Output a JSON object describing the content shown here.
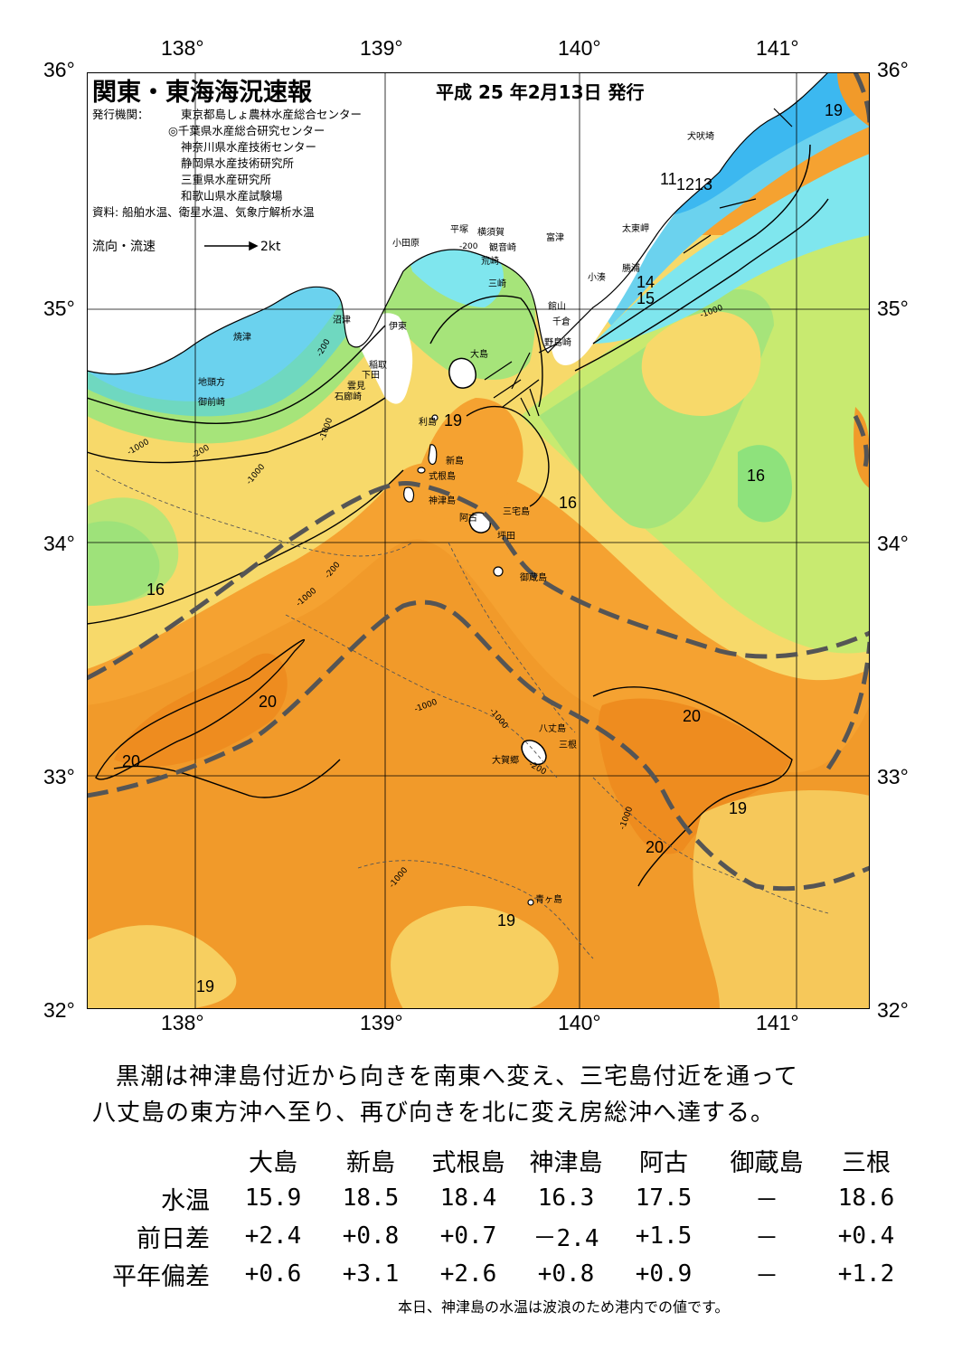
{
  "map": {
    "title": "関東・東海海況速報",
    "issue_date": "平成 25 年2月13日 発行",
    "publisher_label": "発行機関：",
    "publishers": [
      "東京都島しょ農林水産総合センター",
      "◎千葉県水産総合研究センター",
      "神奈川県水産技術センター",
      "静岡県水産技術研究所",
      "三重県水産研究所",
      "和歌山県水産試験場"
    ],
    "source": "資料: 船舶水温、衛星水温、気象庁解析水温",
    "current_legend": "流向・流速",
    "current_scale": "2kt",
    "lon_labels": [
      "138°",
      "139°",
      "140°",
      "141°"
    ],
    "lat_labels": [
      "36°",
      "35°",
      "34°",
      "33°",
      "32°"
    ],
    "places": [
      {
        "id": "inubozaki",
        "text": "犬吠埼"
      },
      {
        "id": "taitomisaki",
        "text": "太東岬"
      },
      {
        "id": "katsuura",
        "text": "勝浦"
      },
      {
        "id": "kominato",
        "text": "小湊"
      },
      {
        "id": "tomitsu",
        "text": "富津"
      },
      {
        "id": "yokosuka",
        "text": "横須賀"
      },
      {
        "id": "hiratsuka",
        "text": "平塚"
      },
      {
        "id": "kannonzaki",
        "text": "観音崎"
      },
      {
        "id": "arasaki",
        "text": "荒崎"
      },
      {
        "id": "odawara",
        "text": "小田原"
      },
      {
        "id": "misaki",
        "text": "三崎"
      },
      {
        "id": "tateyama",
        "text": "館山"
      },
      {
        "id": "chikura",
        "text": "千倉"
      },
      {
        "id": "nojimazaki",
        "text": "野島崎"
      },
      {
        "id": "numazu",
        "text": "沼津"
      },
      {
        "id": "ito",
        "text": "伊東"
      },
      {
        "id": "inatori",
        "text": "稲取"
      },
      {
        "id": "shimoda",
        "text": "下田"
      },
      {
        "id": "kumomi",
        "text": "雲見"
      },
      {
        "id": "irozaki",
        "text": "石廊崎"
      },
      {
        "id": "yaizu",
        "text": "焼津"
      },
      {
        "id": "jitogata",
        "text": "地頭方"
      },
      {
        "id": "omaezaki",
        "text": "御前崎"
      },
      {
        "id": "oshima",
        "text": "大島"
      },
      {
        "id": "toshima",
        "text": "利島"
      },
      {
        "id": "niijima",
        "text": "新島"
      },
      {
        "id": "shikinejima",
        "text": "式根島"
      },
      {
        "id": "kozushima",
        "text": "神津島"
      },
      {
        "id": "miyakejima",
        "text": "三宅島"
      },
      {
        "id": "ako",
        "text": "阿古"
      },
      {
        "id": "tsubota",
        "text": "坪田"
      },
      {
        "id": "mikurajima",
        "text": "御蔵島"
      },
      {
        "id": "hachijojima",
        "text": "八丈島"
      },
      {
        "id": "mitsune",
        "text": "三根"
      },
      {
        "id": "okago",
        "text": "大賀郷"
      },
      {
        "id": "aogashima",
        "text": "青ヶ島"
      }
    ],
    "isotherm_labels": [
      "11",
      "12",
      "13",
      "14",
      "15",
      "16",
      "16",
      "16",
      "19",
      "19",
      "19",
      "19",
      "19",
      "20",
      "20",
      "20",
      "20"
    ],
    "depth_labels": [
      "-200",
      "-200",
      "-200",
      "-200",
      "-200",
      "-1000",
      "-1000",
      "-1000",
      "-1000",
      "-1000",
      "-1000",
      "-1000",
      "-1000",
      "-1000"
    ],
    "colors": {
      "cold_blue": "#3cb8f0",
      "cyan": "#7fe6ee",
      "green": "#8ee27c",
      "lime": "#c8ea70",
      "yellow": "#f7dc6a",
      "orange": "#f5a231",
      "deep_orange": "#ef8b1e",
      "kuroshio_axis": "#555555"
    }
  },
  "description": {
    "line1": "黒潮は神津島付近から向きを南東へ変え、三宅島付近を通って",
    "line2": "八丈島の東方沖へ至り、再び向きを北に変え房総沖へ達する。"
  },
  "observations": {
    "stations": [
      "大島",
      "新島",
      "式根島",
      "神津島",
      "阿古",
      "御蔵島",
      "三根"
    ],
    "rows": [
      {
        "label": "水温",
        "values": [
          "15.9",
          "18.5",
          "18.4",
          "16.3",
          "17.5",
          "－",
          "18.6"
        ]
      },
      {
        "label": "前日差",
        "values": [
          "+2.4",
          "+0.8",
          "+0.7",
          "－2.4",
          "+1.5",
          "－",
          "+0.4"
        ]
      },
      {
        "label": "平年偏差",
        "values": [
          "+0.6",
          "+3.1",
          "+2.6",
          "+0.8",
          "+0.9",
          "－",
          "+1.2"
        ]
      }
    ],
    "note": "本日、神津島の水温は波浪のため港内での値です。"
  }
}
